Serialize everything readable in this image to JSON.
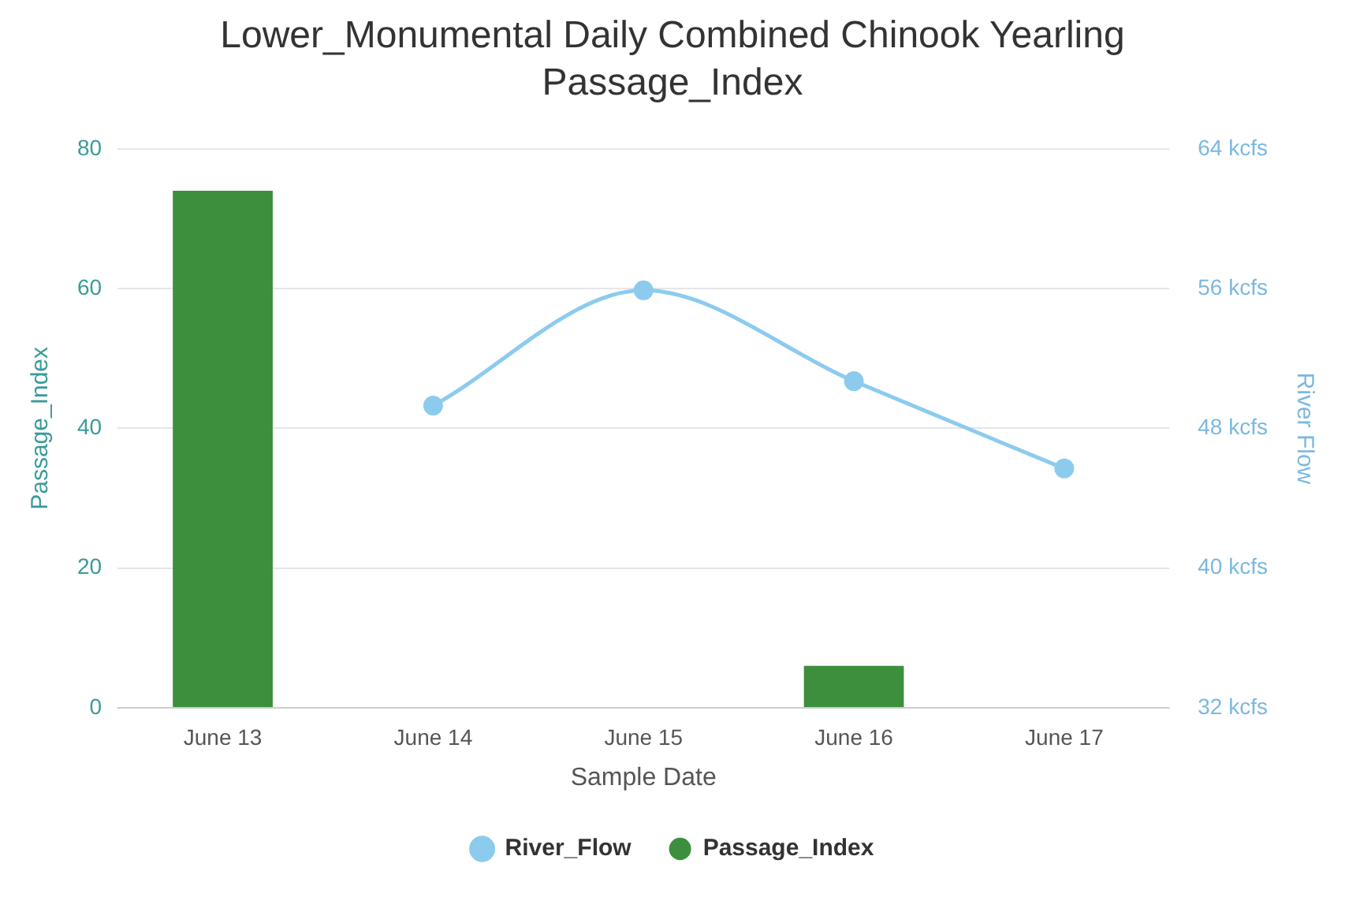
{
  "chart_data": {
    "type": "bar",
    "title": "Lower_Monumental Daily Combined Chinook Yearling Passage_Index",
    "xlabel": "Sample Date",
    "ylabel": "Passage_Index",
    "y2label": "River Flow",
    "categories": [
      "June 13",
      "June 14",
      "June 15",
      "June 16",
      "June 17"
    ],
    "series": [
      {
        "name": "River_Flow",
        "type": "line",
        "axis": "y2",
        "color": "#8ccbee",
        "values": [
          null,
          49.3,
          55.9,
          50.7,
          45.7
        ]
      },
      {
        "name": "Passage_Index",
        "color": "#3d8f3d",
        "values": [
          74,
          0,
          0,
          6,
          0
        ]
      }
    ],
    "ylim": [
      0,
      80
    ],
    "yticks": [
      0,
      20,
      40,
      60,
      80
    ],
    "y2lim": [
      32,
      64
    ],
    "y2ticks": [
      {
        "value": 32,
        "label": "32 kcfs"
      },
      {
        "value": 40,
        "label": "40 kcfs"
      },
      {
        "value": 48,
        "label": "48 kcfs"
      },
      {
        "value": 56,
        "label": "56 kcfs"
      },
      {
        "value": 64,
        "label": "64 kcfs"
      }
    ],
    "grid": "y",
    "legend": "bottom",
    "marker": "circle"
  }
}
